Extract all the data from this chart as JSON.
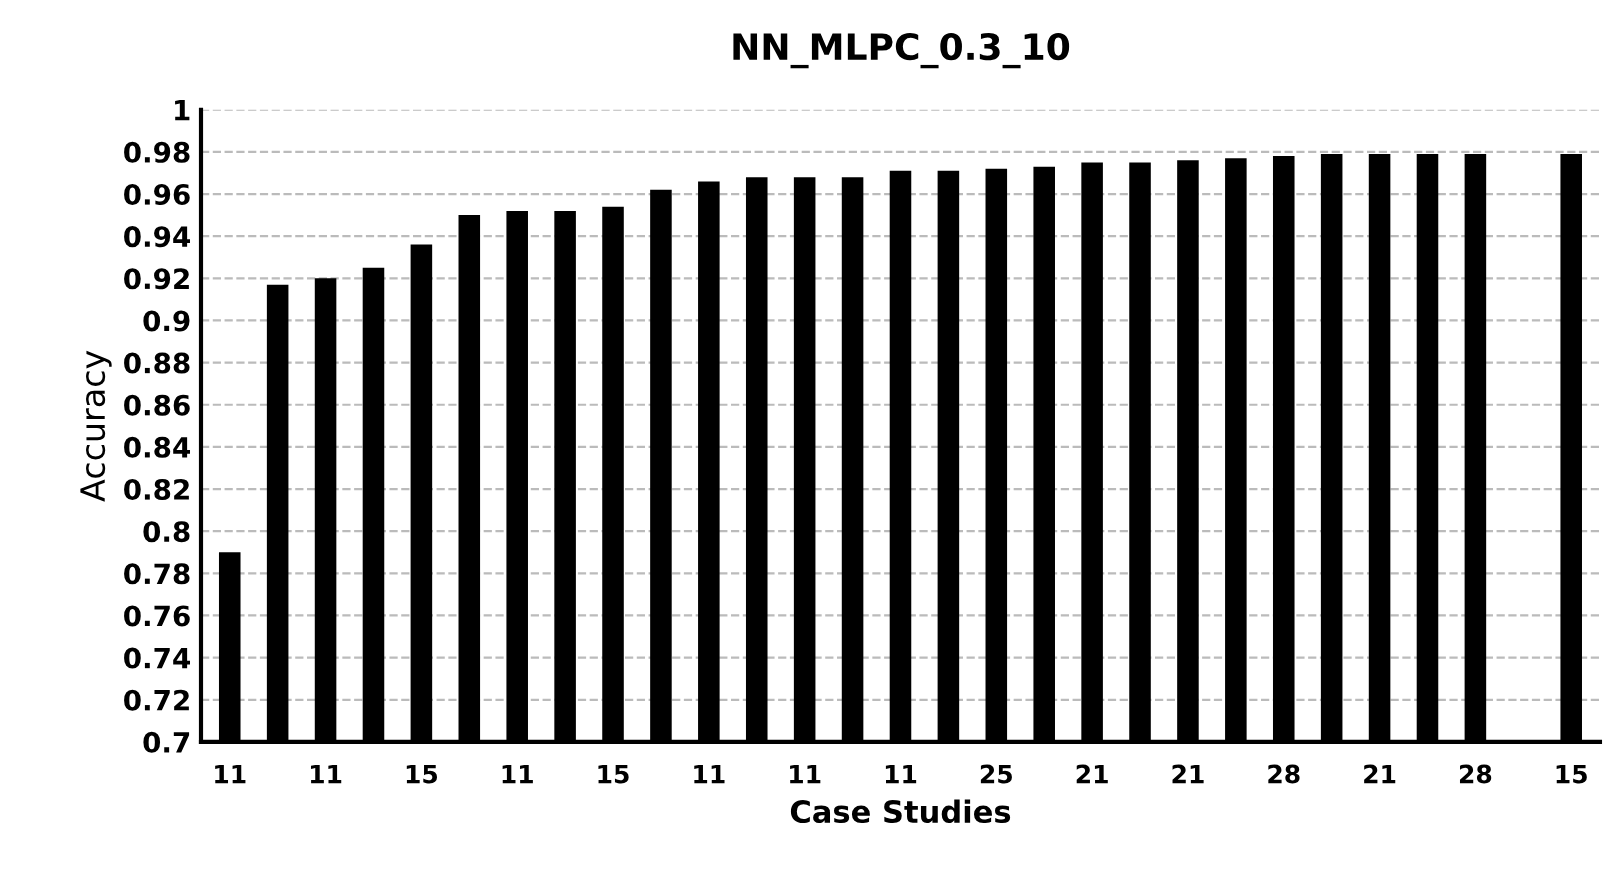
{
  "chart_data": {
    "type": "bar",
    "title": "NN_MLPC_0.3_10",
    "xlabel": "Case Studies",
    "ylabel": "Accuracy",
    "categories": [
      "11",
      null,
      "11",
      null,
      "15",
      null,
      "11",
      null,
      "15",
      null,
      "11",
      null,
      "11",
      null,
      "11",
      null,
      "25",
      null,
      "21",
      null,
      "21",
      null,
      "28",
      null,
      "21",
      null,
      "28",
      null,
      "15"
    ],
    "values": [
      0.79,
      0.917,
      0.92,
      0.925,
      0.936,
      0.95,
      0.952,
      0.952,
      0.954,
      0.962,
      0.966,
      0.968,
      0.968,
      0.968,
      0.971,
      0.971,
      0.972,
      0.973,
      0.975,
      0.975,
      0.976,
      0.977,
      0.978,
      0.979,
      0.979,
      0.979,
      0.979,
      null,
      0.979
    ],
    "color": "#000000",
    "ylim": [
      0.7,
      1
    ],
    "yticks": [
      {
        "value": 0.7,
        "label": "0.7"
      },
      0.72,
      0.74,
      0.76,
      0.78,
      {
        "value": 0.8,
        "label": "0.8"
      },
      0.82,
      0.84,
      0.86,
      0.88,
      {
        "value": 0.9,
        "label": "0.9"
      },
      0.92,
      0.94,
      0.96,
      0.98,
      {
        "value": 1,
        "label": "1"
      }
    ],
    "grid": "y"
  }
}
